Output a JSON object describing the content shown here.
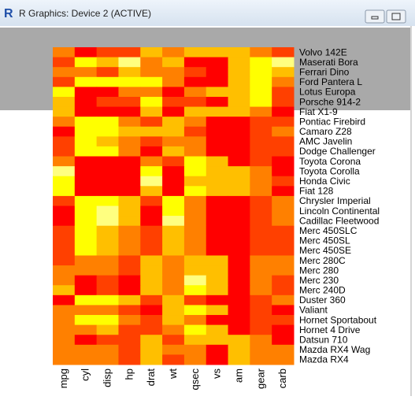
{
  "window": {
    "title": "R Graphics: Device 2 (ACTIVE)"
  },
  "chart_data": {
    "type": "heatmap",
    "columns": [
      "mpg",
      "cyl",
      "disp",
      "hp",
      "drat",
      "wt",
      "qsec",
      "vs",
      "am",
      "gear",
      "carb"
    ],
    "rows": [
      "Volvo 142E",
      "Maserati Bora",
      "Ferrari Dino",
      "Ford Pantera L",
      "Lotus Europa",
      "Porsche 914-2",
      "Fiat X1-9",
      "Pontiac Firebird",
      "Camaro Z28",
      "AMC Javelin",
      "Dodge Challenger",
      "Toyota Corona",
      "Toyota Corolla",
      "Honda Civic",
      "Fiat 128",
      "Chrysler Imperial",
      "Lincoln Continental",
      "Cadillac Fleetwood",
      "Merc 450SLC",
      "Merc 450SL",
      "Merc 450SE",
      "Merc 280C",
      "Merc 280",
      "Merc 230",
      "Merc 240D",
      "Duster 360",
      "Valiant",
      "Hornet Sportabout",
      "Hornet 4 Drive",
      "Datsun 710",
      "Mazda RX4 Wag",
      "Mazda RX4"
    ],
    "colors": [
      "#FF0000",
      "#FF4000",
      "#FF8000",
      "#FFBF00",
      "#FFFF00",
      "#FFFF80"
    ],
    "values": [
      [
        2,
        0,
        1,
        1,
        3,
        2,
        3,
        3,
        3,
        2,
        1
      ],
      [
        1,
        4,
        3,
        5,
        2,
        3,
        0,
        0,
        3,
        4,
        5
      ],
      [
        2,
        2,
        1,
        3,
        2,
        2,
        1,
        0,
        3,
        4,
        3
      ],
      [
        1,
        4,
        4,
        4,
        4,
        2,
        0,
        0,
        3,
        4,
        2
      ],
      [
        4,
        0,
        0,
        2,
        2,
        0,
        2,
        3,
        3,
        4,
        1
      ],
      [
        3,
        0,
        1,
        1,
        4,
        1,
        1,
        0,
        3,
        4,
        1
      ],
      [
        3,
        0,
        0,
        0,
        3,
        0,
        3,
        3,
        3,
        2,
        0
      ],
      [
        2,
        4,
        4,
        2,
        1,
        3,
        2,
        0,
        0,
        1,
        1
      ],
      [
        0,
        4,
        4,
        3,
        3,
        3,
        1,
        0,
        0,
        1,
        2
      ],
      [
        1,
        4,
        3,
        2,
        1,
        2,
        2,
        0,
        0,
        1,
        1
      ],
      [
        1,
        4,
        4,
        2,
        0,
        3,
        2,
        0,
        0,
        1,
        1
      ],
      [
        2,
        0,
        0,
        0,
        2,
        1,
        4,
        3,
        0,
        1,
        0
      ],
      [
        5,
        0,
        0,
        0,
        4,
        0,
        4,
        3,
        3,
        2,
        0
      ],
      [
        4,
        0,
        0,
        0,
        5,
        0,
        3,
        3,
        3,
        2,
        1
      ],
      [
        4,
        0,
        0,
        0,
        3,
        0,
        4,
        3,
        3,
        2,
        0
      ],
      [
        1,
        4,
        4,
        3,
        1,
        4,
        2,
        0,
        0,
        1,
        2
      ],
      [
        0,
        4,
        5,
        3,
        0,
        4,
        2,
        0,
        0,
        1,
        2
      ],
      [
        0,
        4,
        5,
        3,
        0,
        5,
        2,
        0,
        0,
        1,
        2
      ],
      [
        1,
        4,
        3,
        2,
        1,
        3,
        2,
        0,
        0,
        1,
        1
      ],
      [
        1,
        4,
        3,
        2,
        1,
        3,
        2,
        0,
        0,
        1,
        1
      ],
      [
        1,
        4,
        3,
        2,
        1,
        3,
        2,
        0,
        0,
        1,
        1
      ],
      [
        1,
        2,
        2,
        1,
        3,
        2,
        3,
        3,
        0,
        2,
        2
      ],
      [
        2,
        2,
        2,
        1,
        3,
        2,
        3,
        3,
        0,
        2,
        2
      ],
      [
        2,
        0,
        1,
        0,
        3,
        2,
        5,
        3,
        0,
        2,
        1
      ],
      [
        3,
        0,
        1,
        0,
        3,
        2,
        4,
        3,
        0,
        2,
        1
      ],
      [
        0,
        4,
        4,
        3,
        1,
        3,
        1,
        0,
        0,
        1,
        2
      ],
      [
        2,
        2,
        2,
        1,
        0,
        3,
        4,
        3,
        0,
        1,
        0
      ],
      [
        2,
        4,
        4,
        2,
        1,
        3,
        2,
        0,
        0,
        1,
        1
      ],
      [
        2,
        2,
        3,
        1,
        1,
        2,
        4,
        3,
        0,
        1,
        0
      ],
      [
        2,
        0,
        1,
        1,
        3,
        1,
        3,
        3,
        3,
        2,
        0
      ],
      [
        2,
        2,
        2,
        1,
        3,
        2,
        2,
        0,
        3,
        2,
        2
      ],
      [
        2,
        2,
        2,
        1,
        3,
        1,
        2,
        0,
        3,
        2,
        2
      ]
    ]
  }
}
